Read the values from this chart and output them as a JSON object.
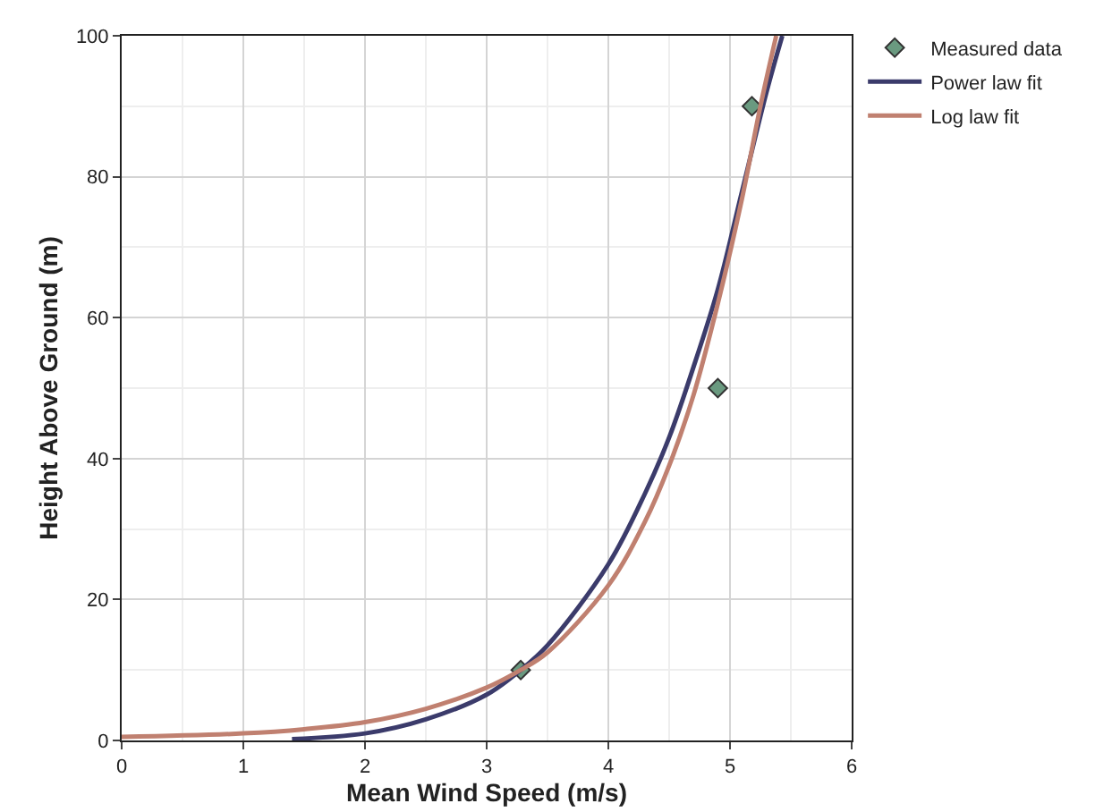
{
  "chart_data": {
    "type": "line",
    "xlabel": "Mean Wind Speed (m/s)",
    "ylabel": "Height Above Ground (m)",
    "xlim": [
      0,
      6
    ],
    "ylim": [
      0,
      100
    ],
    "xticks": [
      0,
      1,
      2,
      3,
      4,
      5,
      6
    ],
    "yticks": [
      0,
      20,
      40,
      60,
      80,
      100
    ],
    "grid": true,
    "legend": "top right",
    "series": [
      {
        "name": "Measured data",
        "type": "scatter",
        "marker": "diamond",
        "color": "#6a9a80",
        "x": [
          3.28,
          4.9,
          5.18
        ],
        "values": [
          10,
          50,
          90
        ]
      },
      {
        "name": "Power law fit",
        "marker": "none",
        "color": "#3b3b6b",
        "x": [
          1.4,
          2,
          2.5,
          3,
          3.28,
          3.5,
          4,
          4.3,
          4.5,
          4.7,
          4.9,
          5.1,
          5.3,
          5.43
        ],
        "values": [
          0.2,
          1,
          3,
          6.5,
          10,
          13.5,
          25,
          35,
          43,
          53,
          64,
          78,
          92,
          100
        ]
      },
      {
        "name": "Log law fit",
        "marker": "none",
        "color": "#c08070",
        "x": [
          0,
          1,
          1.5,
          2,
          2.5,
          3,
          3.28,
          3.5,
          4,
          4.3,
          4.5,
          4.7,
          4.9,
          5.1,
          5.25,
          5.38
        ],
        "values": [
          0.5,
          1,
          1.6,
          2.6,
          4.5,
          7.5,
          10,
          12.5,
          22,
          31,
          39,
          49,
          62,
          77,
          90,
          100
        ]
      }
    ]
  }
}
